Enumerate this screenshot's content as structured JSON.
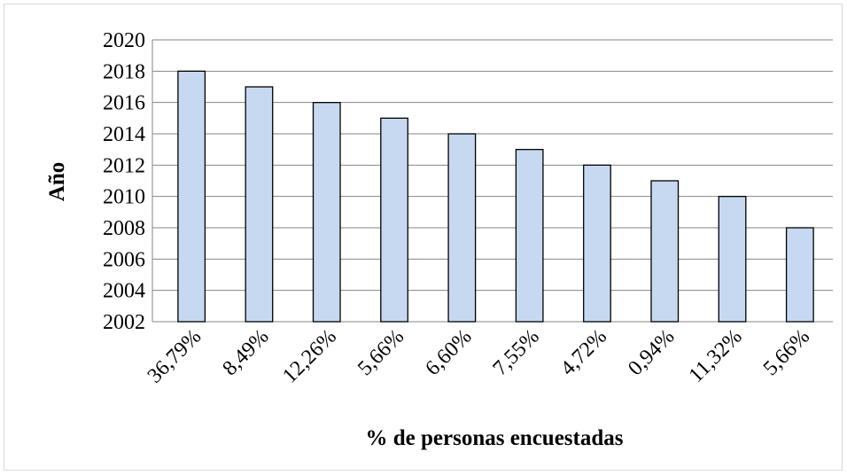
{
  "chart_data": {
    "type": "bar",
    "x_label": "% de personas encuestadas",
    "y_label": "Año",
    "categories": [
      "36,79%",
      "8,49%",
      "12,26%",
      "5,66%",
      "6,60%",
      "7,55%",
      "4,72%",
      "0,94%",
      "11,32%",
      "5,66%"
    ],
    "values": [
      2018,
      2017,
      2016,
      2015,
      2014,
      2013,
      2012,
      2011,
      2010,
      2008
    ],
    "color": "#c6d9f1",
    "ylim": [
      2002,
      2020
    ],
    "yticks": [
      2002,
      2004,
      2006,
      2008,
      2010,
      2012,
      2014,
      2016,
      2018,
      2020
    ],
    "grid": true
  }
}
